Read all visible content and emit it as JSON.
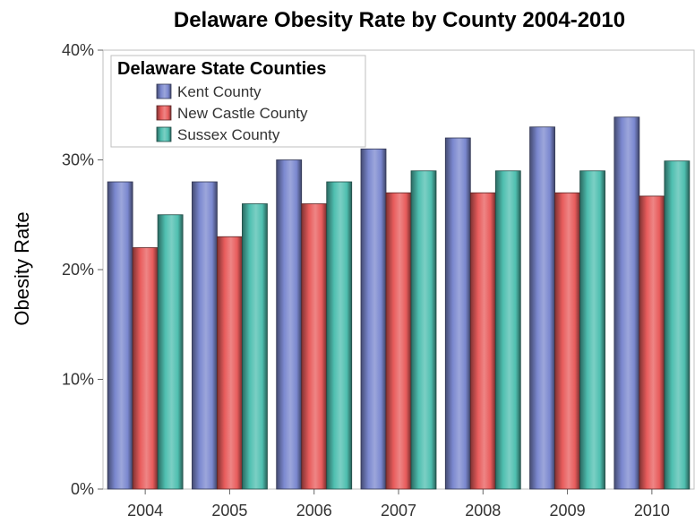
{
  "chart_data": {
    "type": "bar",
    "title": "Delaware Obesity Rate by County 2004-2010",
    "ylabel": "Obesity Rate",
    "xlabel": "",
    "categories": [
      "2004",
      "2005",
      "2006",
      "2007",
      "2008",
      "2009",
      "2010"
    ],
    "series": [
      {
        "name": "Kent County",
        "values": [
          28,
          28,
          30,
          31,
          32,
          33,
          33.9
        ],
        "color": "#7b88cf"
      },
      {
        "name": "New Castle County",
        "values": [
          22,
          23,
          26,
          27,
          27,
          27,
          26.7
        ],
        "color": "#e85c5c"
      },
      {
        "name": "Sussex County",
        "values": [
          25,
          26,
          28,
          29,
          29,
          29,
          29.9
        ],
        "color": "#4fbfb0"
      }
    ],
    "ylim": [
      0,
      40
    ],
    "yticks": [
      0,
      10,
      20,
      30,
      40
    ],
    "ytick_labels": [
      "0%",
      "10%",
      "20%",
      "30%",
      "40%"
    ],
    "legend": {
      "title": "Delaware State Counties",
      "placement": "top-left"
    },
    "grid": false
  }
}
